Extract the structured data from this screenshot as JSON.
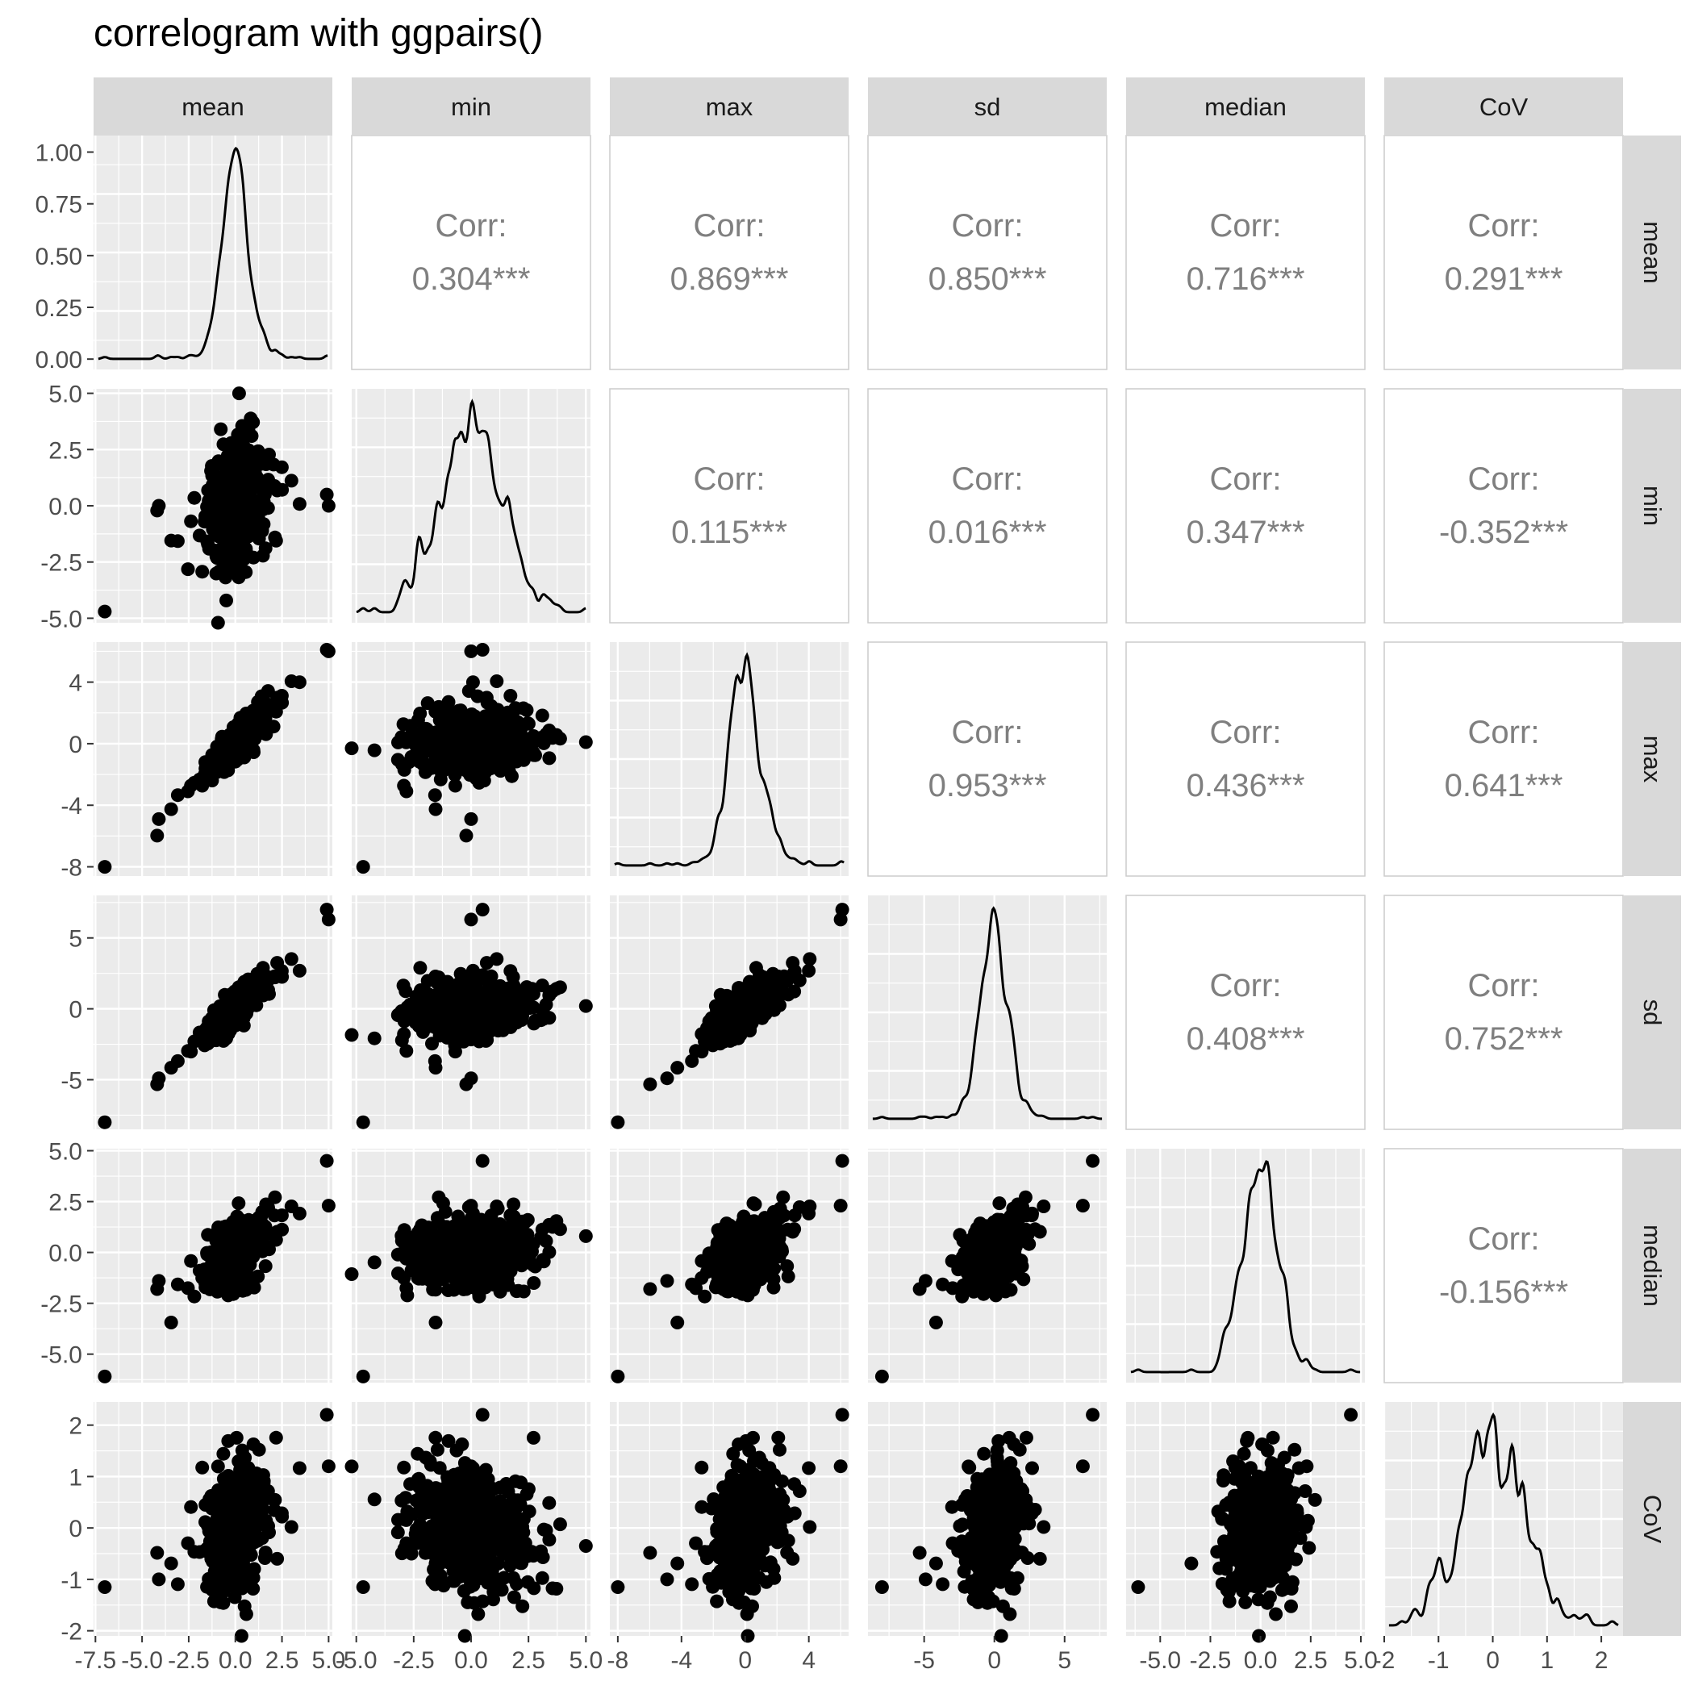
{
  "title": "correlogram with ggpairs()",
  "chart_data": {
    "type": "scatter",
    "title": "correlogram with ggpairs()",
    "layout": "pairs matrix: density on diagonal, scatter below diagonal, correlation text above diagonal",
    "variables": [
      "mean",
      "min",
      "max",
      "sd",
      "median",
      "CoV"
    ],
    "grid": true,
    "panel_background": "#ebebeb",
    "strip_background": "#d9d9d9",
    "x_axes": [
      {
        "variable": "mean",
        "range": [
          -7.6,
          5.2
        ],
        "ticks": [
          -7.5,
          -5.0,
          -2.5,
          0.0,
          2.5,
          5.0
        ],
        "tick_labels": [
          "-7.5",
          "-5.0",
          "-2.5",
          "0.0",
          "2.5",
          "5.0"
        ]
      },
      {
        "variable": "min",
        "range": [
          -5.2,
          5.2
        ],
        "ticks": [
          -5.0,
          -2.5,
          0.0,
          2.5,
          5.0
        ],
        "tick_labels": [
          "-5.0",
          "-2.5",
          "0.0",
          "2.5",
          "5.0"
        ]
      },
      {
        "variable": "max",
        "range": [
          -8.5,
          6.5
        ],
        "ticks": [
          -8,
          -4,
          0,
          4
        ],
        "tick_labels": [
          "-8",
          "-4",
          "0",
          "4"
        ]
      },
      {
        "variable": "sd",
        "range": [
          -9.0,
          8.0
        ],
        "ticks": [
          -5,
          0,
          5
        ],
        "tick_labels": [
          "-5",
          "0",
          "5"
        ]
      },
      {
        "variable": "median",
        "range": [
          -6.7,
          5.2
        ],
        "ticks": [
          -5.0,
          -2.5,
          0.0,
          2.5,
          5.0
        ],
        "tick_labels": [
          "-5.0",
          "-2.5",
          "0.0",
          "2.5",
          "5.0"
        ]
      },
      {
        "variable": "CoV",
        "range": [
          -2.0,
          2.4
        ],
        "ticks": [
          -2,
          -1,
          0,
          1,
          2
        ],
        "tick_labels": [
          "-2",
          "-1",
          "0",
          "1",
          "2"
        ]
      }
    ],
    "y_axes": [
      {
        "variable": "mean",
        "range": [
          -0.05,
          1.08
        ],
        "ticks": [
          0.0,
          0.25,
          0.5,
          0.75,
          1.0
        ],
        "tick_labels": [
          "0.00",
          "0.25",
          "0.50",
          "0.75",
          "1.00"
        ]
      },
      {
        "variable": "min",
        "range": [
          -5.2,
          5.2
        ],
        "ticks": [
          -5.0,
          -2.5,
          0.0,
          2.5,
          5.0
        ],
        "tick_labels": [
          "-5.0",
          "-2.5",
          "0.0",
          "2.5",
          "5.0"
        ]
      },
      {
        "variable": "max",
        "range": [
          -8.6,
          6.6
        ],
        "ticks": [
          -8,
          -4,
          0,
          4
        ],
        "tick_labels": [
          "-8",
          "-4",
          "0",
          "4"
        ]
      },
      {
        "variable": "sd",
        "range": [
          -8.5,
          8.0
        ],
        "ticks": [
          -5,
          0,
          5
        ],
        "tick_labels": [
          "-5",
          "0",
          "5"
        ]
      },
      {
        "variable": "median",
        "range": [
          -6.4,
          5.1
        ],
        "ticks": [
          -5.0,
          -2.5,
          0.0,
          2.5,
          5.0
        ],
        "tick_labels": [
          "-5.0",
          "-2.5",
          "0.0",
          "2.5",
          "5.0"
        ]
      },
      {
        "variable": "CoV",
        "range": [
          -2.1,
          2.45
        ],
        "ticks": [
          -2,
          -1,
          0,
          1,
          2
        ],
        "tick_labels": [
          "-2",
          "-1",
          "0",
          "1",
          "2"
        ]
      }
    ],
    "correlations": [
      {
        "row": "mean",
        "col": "min",
        "label": "Corr:",
        "value": "0.304***"
      },
      {
        "row": "mean",
        "col": "max",
        "label": "Corr:",
        "value": "0.869***"
      },
      {
        "row": "mean",
        "col": "sd",
        "label": "Corr:",
        "value": "0.850***"
      },
      {
        "row": "mean",
        "col": "median",
        "label": "Corr:",
        "value": "0.716***"
      },
      {
        "row": "mean",
        "col": "CoV",
        "label": "Corr:",
        "value": "0.291***"
      },
      {
        "row": "min",
        "col": "max",
        "label": "Corr:",
        "value": "0.115***"
      },
      {
        "row": "min",
        "col": "sd",
        "label": "Corr:",
        "value": "0.016***"
      },
      {
        "row": "min",
        "col": "median",
        "label": "Corr:",
        "value": "0.347***"
      },
      {
        "row": "min",
        "col": "CoV",
        "label": "Corr:",
        "value": "-0.352***"
      },
      {
        "row": "max",
        "col": "sd",
        "label": "Corr:",
        "value": "0.953***"
      },
      {
        "row": "max",
        "col": "median",
        "label": "Corr:",
        "value": "0.436***"
      },
      {
        "row": "max",
        "col": "CoV",
        "label": "Corr:",
        "value": "0.641***"
      },
      {
        "row": "sd",
        "col": "median",
        "label": "Corr:",
        "value": "0.408***"
      },
      {
        "row": "sd",
        "col": "CoV",
        "label": "Corr:",
        "value": "0.752***"
      },
      {
        "row": "median",
        "col": "CoV",
        "label": "Corr:",
        "value": "-0.156***"
      }
    ],
    "correlation_text_color": "#7f7f7f",
    "point_color": "#000000"
  }
}
